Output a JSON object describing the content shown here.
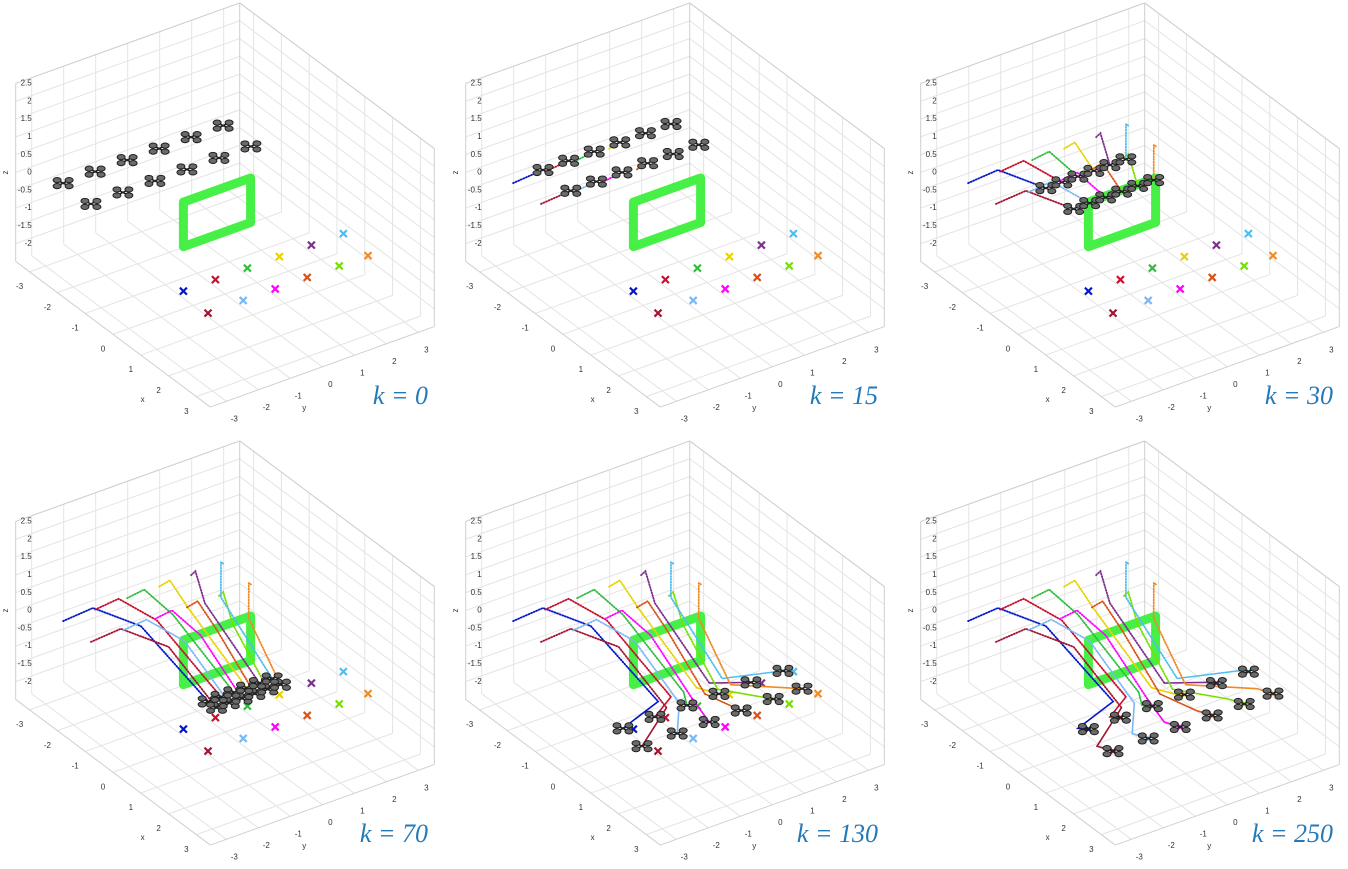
{
  "chart_data": {
    "type": "scatter3d",
    "xlabel": "x",
    "ylabel": "y",
    "zlabel": "z",
    "xlim": [
      -3.5,
      3.5
    ],
    "ylim": [
      -3.5,
      3.5
    ],
    "zlim": [
      -2.5,
      2.5
    ],
    "xticks": [
      -3,
      -2,
      -1,
      0,
      1,
      2,
      3
    ],
    "yticks": [
      -3,
      -2,
      -1,
      0,
      1,
      2,
      3
    ],
    "zticks": [
      -2,
      -1.5,
      -1,
      -0.5,
      0,
      0.5,
      1,
      1.5,
      2,
      2.5
    ],
    "grid": true,
    "label_color": "#2479b8",
    "gate": {
      "color": "#33ee33",
      "x": 0,
      "y": [
        -1.3,
        0.8
      ],
      "z": [
        -0.75,
        0.5
      ]
    },
    "panels": [
      {
        "label": "k = 0"
      },
      {
        "label": "k = 15"
      },
      {
        "label": "k = 30"
      },
      {
        "label": "k = 70"
      },
      {
        "label": "k = 130"
      },
      {
        "label": "k = 250"
      }
    ],
    "drones": [
      {
        "color": "#0016c8",
        "target": [
          0,
          -1.3,
          -2
        ],
        "positions": [
          [
            -2.6,
            -2.8,
            0
          ],
          [
            -2.1,
            -2.3,
            0.5
          ],
          [
            -1.3,
            -1.5,
            0.2
          ],
          [
            0.2,
            -0.7,
            -1.3
          ],
          [
            0.2,
            -1.8,
            -1.7
          ],
          [
            0,
            -1.3,
            -2
          ]
        ]
      },
      {
        "color": "#a2142f",
        "target": [
          1,
          -1.4,
          -2
        ],
        "positions": [
          [
            -1.6,
            -2.8,
            0
          ],
          [
            -1.1,
            -2.3,
            0.5
          ],
          [
            -0.3,
            -1.5,
            0.2
          ],
          [
            0.5,
            -0.7,
            -1.3
          ],
          [
            1.0,
            -1.9,
            -1.7
          ],
          [
            1,
            -1.4,
            -2
          ]
        ]
      },
      {
        "color": "#c8102e",
        "target": [
          0,
          -0.3,
          -2
        ],
        "positions": [
          [
            -2.6,
            -1.8,
            0
          ],
          [
            -2.1,
            -1.5,
            0.5
          ],
          [
            -1.3,
            -1.0,
            0.2
          ],
          [
            0.2,
            -0.3,
            -1.3
          ],
          [
            0.2,
            -0.8,
            -1.7
          ],
          [
            0,
            -0.3,
            -2
          ]
        ]
      },
      {
        "color": "#7ab8f5",
        "target": [
          1,
          -0.3,
          -2
        ],
        "positions": [
          [
            -1.6,
            -1.8,
            0
          ],
          [
            -1.1,
            -1.5,
            0.5
          ],
          [
            -0.3,
            -1.0,
            0.2
          ],
          [
            0.5,
            -0.3,
            -1.3
          ],
          [
            1.0,
            -0.8,
            -1.7
          ],
          [
            1,
            -0.3,
            -2
          ]
        ]
      },
      {
        "color": "#2ebd3c",
        "target": [
          0,
          0.7,
          -2
        ],
        "positions": [
          [
            -2.6,
            -0.8,
            0
          ],
          [
            -2.1,
            -0.7,
            0.5
          ],
          [
            -1.3,
            -0.5,
            0.2
          ],
          [
            0.2,
            0.1,
            -1.3
          ],
          [
            0.2,
            0.2,
            -1.7
          ],
          [
            0,
            0.7,
            -2
          ]
        ]
      },
      {
        "color": "#ff00ff",
        "target": [
          1,
          0.7,
          -2
        ],
        "positions": [
          [
            -1.6,
            -0.8,
            0
          ],
          [
            -1.1,
            -0.7,
            0.5
          ],
          [
            -0.3,
            -0.5,
            0.2
          ],
          [
            0.5,
            0.1,
            -1.3
          ],
          [
            1.0,
            0.2,
            -1.7
          ],
          [
            1,
            0.7,
            -2
          ]
        ]
      },
      {
        "color": "#e8d200",
        "target": [
          0,
          1.7,
          -2
        ],
        "positions": [
          [
            -2.6,
            0.2,
            0
          ],
          [
            -2.1,
            0.1,
            0.5
          ],
          [
            -1.3,
            0.0,
            0.2
          ],
          [
            0.2,
            0.5,
            -1.3
          ],
          [
            0.2,
            1.2,
            -1.7
          ],
          [
            0,
            1.7,
            -2
          ]
        ]
      },
      {
        "color": "#d95319",
        "target": [
          1,
          1.7,
          -2
        ],
        "positions": [
          [
            -1.6,
            0.2,
            0
          ],
          [
            -1.1,
            0.1,
            0.5
          ],
          [
            -0.3,
            0.0,
            0.2
          ],
          [
            0.5,
            0.5,
            -1.3
          ],
          [
            1.0,
            1.2,
            -1.7
          ],
          [
            1,
            1.7,
            -2
          ]
        ]
      },
      {
        "color": "#7e2f8e",
        "target": [
          0,
          2.7,
          -2
        ],
        "positions": [
          [
            -2.6,
            1.2,
            0
          ],
          [
            -2.1,
            0.9,
            0.5
          ],
          [
            -1.3,
            0.5,
            0.2
          ],
          [
            0.2,
            0.9,
            -1.3
          ],
          [
            0.2,
            2.2,
            -1.7
          ],
          [
            0,
            2.7,
            -2
          ]
        ]
      },
      {
        "color": "#77e000",
        "target": [
          1,
          2.7,
          -2
        ],
        "positions": [
          [
            -1.6,
            1.2,
            0
          ],
          [
            -1.1,
            0.9,
            0.5
          ],
          [
            -0.3,
            0.5,
            0.2
          ],
          [
            0.5,
            0.9,
            -1.3
          ],
          [
            1.0,
            2.2,
            -1.7
          ],
          [
            1,
            2.7,
            -2
          ]
        ]
      },
      {
        "color": "#4dbeee",
        "target": [
          0,
          3.7,
          -2
        ],
        "positions": [
          [
            -2.6,
            2.2,
            0
          ],
          [
            -2.1,
            1.7,
            0.5
          ],
          [
            -1.3,
            1.0,
            0.2
          ],
          [
            0.2,
            1.3,
            -1.3
          ],
          [
            0.2,
            3.2,
            -1.7
          ],
          [
            0,
            3.7,
            -2
          ]
        ]
      },
      {
        "color": "#f08a24",
        "target": [
          1,
          3.6,
          -2
        ],
        "positions": [
          [
            -1.6,
            2.2,
            0
          ],
          [
            -1.1,
            1.7,
            0.5
          ],
          [
            -0.3,
            1.0,
            0.2
          ],
          [
            0.5,
            1.3,
            -1.3
          ],
          [
            1.0,
            3.1,
            -1.7
          ],
          [
            1,
            3.6,
            -2
          ]
        ]
      }
    ]
  }
}
